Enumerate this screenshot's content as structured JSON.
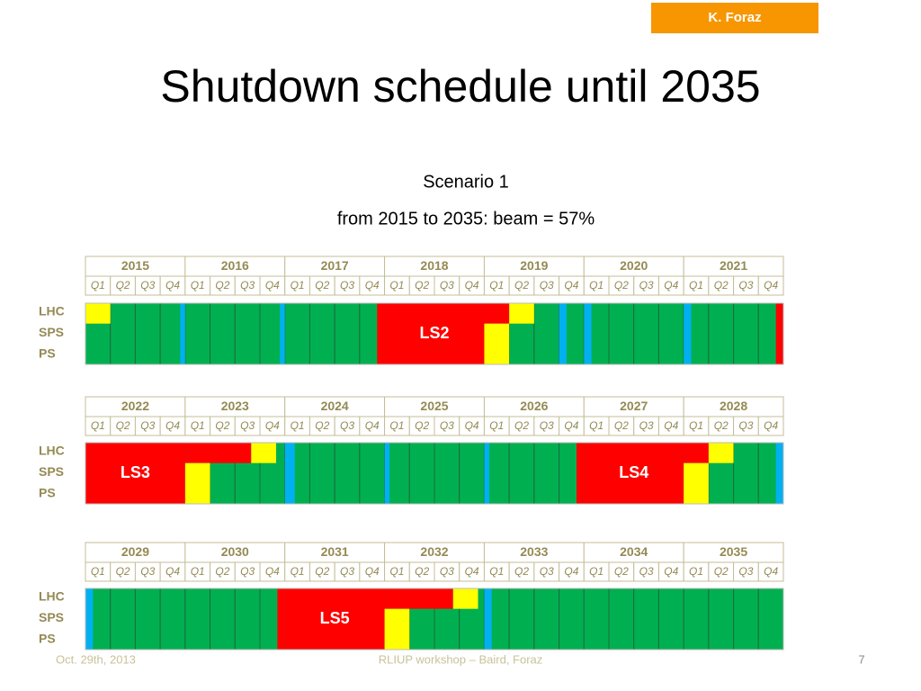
{
  "header": {
    "author_tag": "K. Foraz",
    "title": "Shutdown schedule until 2035",
    "subtitle": "Scenario 1",
    "summary": "from 2015 to 2035: beam = 57%"
  },
  "schedule": {
    "quarters": [
      "Q1",
      "Q2",
      "Q3",
      "Q4"
    ],
    "rows": [
      "LHC",
      "SPS",
      "PS"
    ],
    "blocks": [
      {
        "years": [
          "2015",
          "2016",
          "2017",
          "2018",
          "2019",
          "2020",
          "2021"
        ],
        "shutdowns": [
          "LS2"
        ]
      },
      {
        "years": [
          "2022",
          "2023",
          "2024",
          "2025",
          "2026",
          "2027",
          "2028"
        ],
        "shutdowns": [
          "LS3",
          "LS4"
        ]
      },
      {
        "years": [
          "2029",
          "2030",
          "2031",
          "2032",
          "2033",
          "2034",
          "2035"
        ],
        "shutdowns": [
          "LS5"
        ]
      }
    ]
  },
  "footer": {
    "date": "Oct. 29th, 2013",
    "event": "RLIUP workshop – Baird, Foraz",
    "page": "7"
  }
}
